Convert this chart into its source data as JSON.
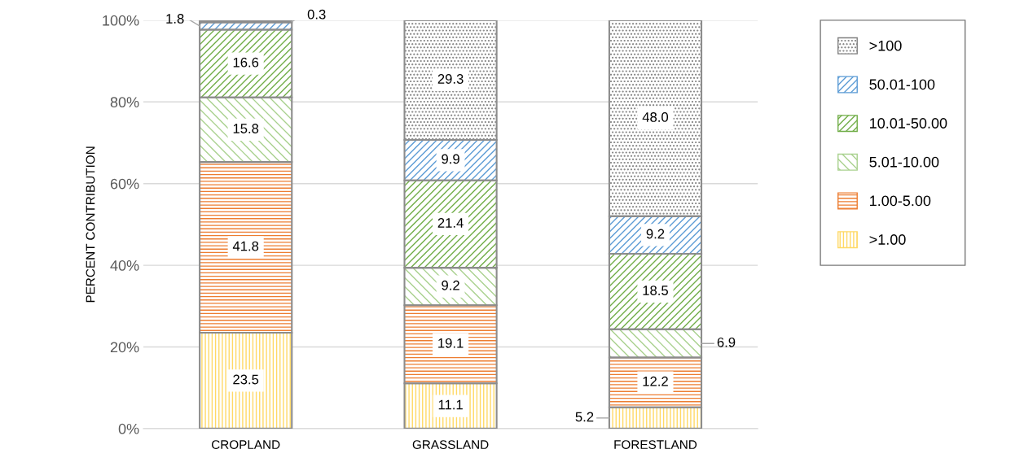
{
  "chart_data": {
    "type": "bar",
    "stacked": true,
    "ylabel": "PERCENT CONTRIBUTION",
    "categories": [
      "CROPLAND",
      "GRASSLAND",
      "FORESTLAND"
    ],
    "ylim": [
      0,
      100
    ],
    "yticks": [
      {
        "value": 0,
        "label": "0%"
      },
      {
        "value": 20,
        "label": "20%"
      },
      {
        "value": 40,
        "label": "40%"
      },
      {
        "value": 60,
        "label": "60%"
      },
      {
        "value": 80,
        "label": "80%"
      },
      {
        "value": 100,
        "label": "100%"
      }
    ],
    "grid": "y",
    "legend": "right",
    "series": [
      {
        "name": ">1.00",
        "color": "#ffd966",
        "values": [
          23.5,
          11.1,
          5.2
        ],
        "value_labels": [
          "23.5",
          "11.1",
          "5.2"
        ]
      },
      {
        "name": "1.00-5.00",
        "color": "#ed7d31",
        "values": [
          41.8,
          19.1,
          12.2
        ],
        "value_labels": [
          "41.8",
          "19.1",
          "12.2"
        ]
      },
      {
        "name": "5.01-10.00",
        "color": "#a9d18e",
        "values": [
          15.8,
          9.2,
          6.9
        ],
        "value_labels": [
          "15.8",
          "9.2",
          "6.9"
        ]
      },
      {
        "name": "10.01-50.00",
        "color": "#70ad47",
        "values": [
          16.6,
          21.4,
          18.5
        ],
        "value_labels": [
          "16.6",
          "21.4",
          "18.5"
        ]
      },
      {
        "name": "50.01-100",
        "color": "#5b9bd5",
        "values": [
          1.8,
          9.9,
          9.2
        ],
        "value_labels": [
          "1.8",
          "9.9",
          "9.2"
        ]
      },
      {
        "name": ">100",
        "color": "#7f7f7f",
        "values": [
          0.3,
          29.3,
          48.0
        ],
        "value_labels": [
          "0.3",
          "29.3",
          "48.0"
        ]
      }
    ]
  }
}
